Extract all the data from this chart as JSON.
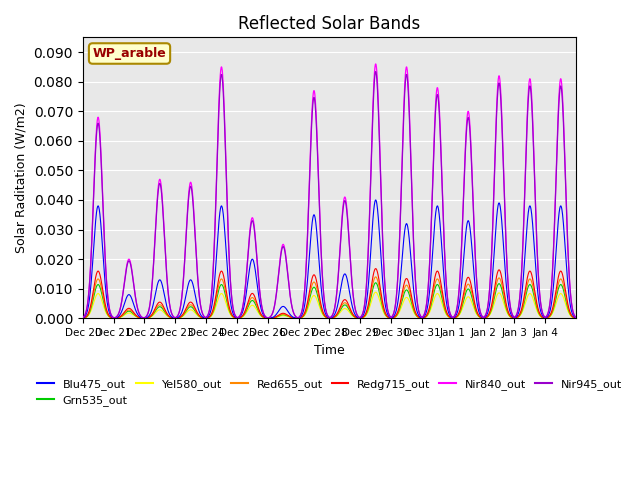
{
  "title": "Reflected Solar Bands",
  "ylabel": "Solar Raditation (W/m2)",
  "xlabel": "Time",
  "annotation": "WP_arable",
  "ylim": [
    0,
    0.095
  ],
  "yticks": [
    0.0,
    0.01,
    0.02,
    0.03,
    0.04,
    0.05,
    0.06,
    0.07,
    0.08,
    0.09
  ],
  "legend_entries": [
    {
      "label": "Blu475_out",
      "color": "#0000ff"
    },
    {
      "label": "Grn535_out",
      "color": "#00cc00"
    },
    {
      "label": "Yel580_out",
      "color": "#ffff00"
    },
    {
      "label": "Red655_out",
      "color": "#ff8800"
    },
    {
      "label": "Redg715_out",
      "color": "#ff0000"
    },
    {
      "label": "Nir840_out",
      "color": "#ff00ff"
    },
    {
      "label": "Nir945_out",
      "color": "#9900cc"
    }
  ],
  "x_tick_labels": [
    "Dec 20",
    "Dec 21",
    "Dec 22",
    "Dec 23",
    "Dec 24",
    "Dec 25",
    "Dec 26",
    "Dec 27",
    "Dec 28",
    "Dec 29",
    "Dec 30",
    "Dec 31",
    "Jan 1",
    "Jan 2",
    "Jan 3",
    "Jan 4"
  ],
  "day_peaks": [
    0.068,
    0.02,
    0.047,
    0.046,
    0.085,
    0.034,
    0.025,
    0.077,
    0.041,
    0.086,
    0.085,
    0.078,
    0.07,
    0.082,
    0.081,
    0.081
  ],
  "blue_peaks": [
    0.038,
    0.008,
    0.013,
    0.013,
    0.038,
    0.02,
    0.004,
    0.035,
    0.015,
    0.04,
    0.032,
    0.038,
    0.033,
    0.039,
    0.038,
    0.038
  ],
  "background_color": "#e8e8e8"
}
